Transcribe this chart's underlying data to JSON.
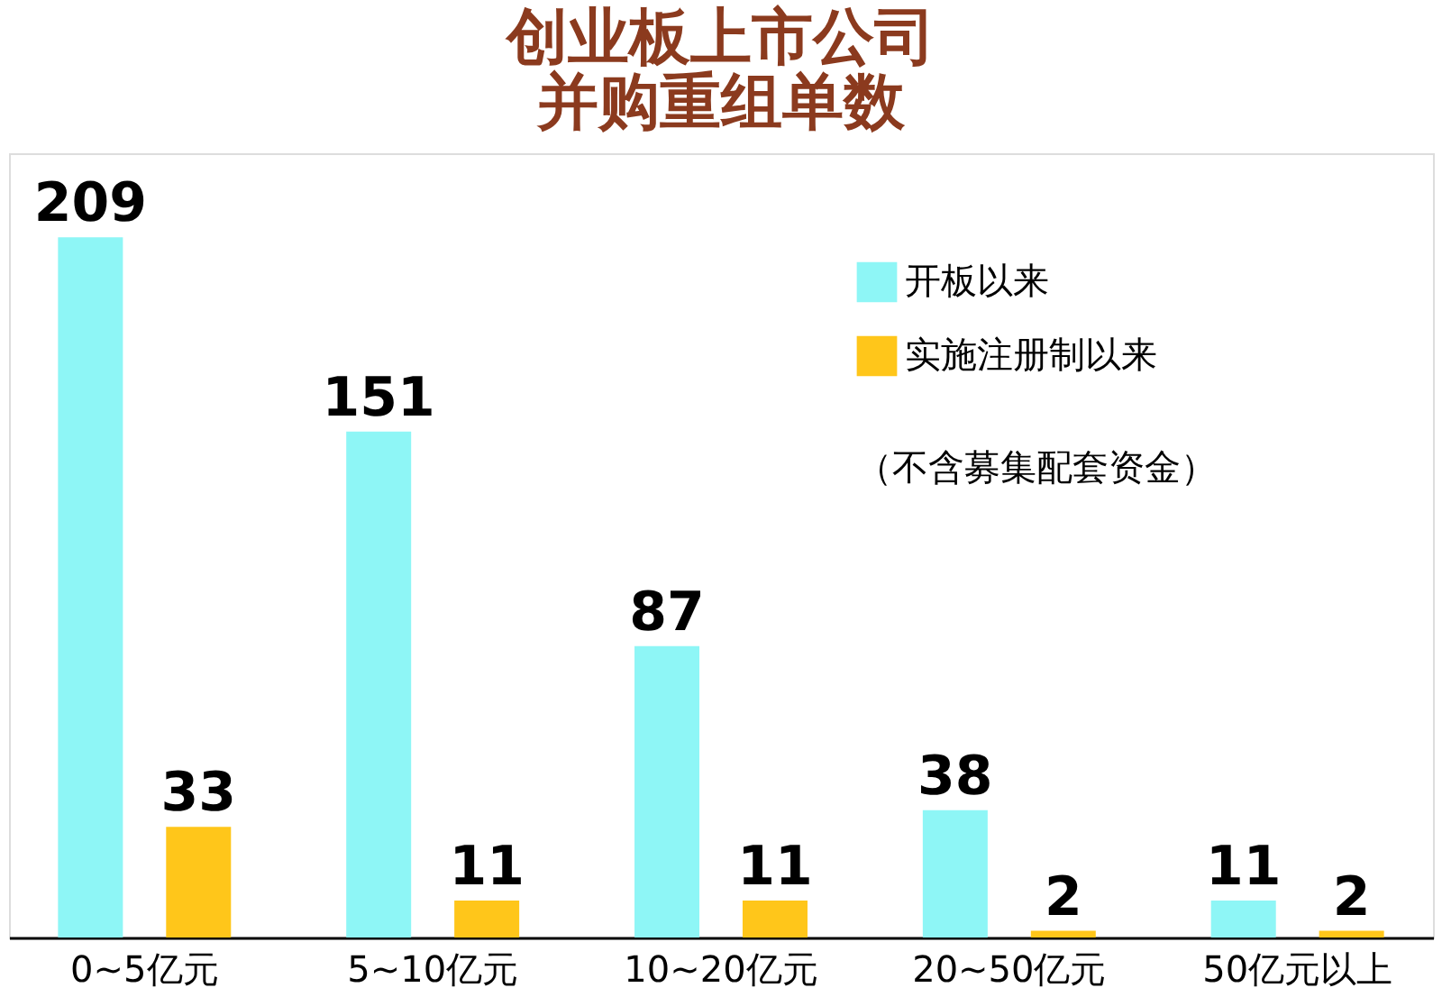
{
  "chart_data": {
    "type": "bar",
    "title": "创业板上市公司并购重组单数",
    "categories": [
      "0~5亿元",
      "5~10亿元",
      "10~20亿元",
      "20~50亿元",
      "50亿元以上"
    ],
    "series": [
      {
        "name": "开板以来",
        "color": "#8ef6f6",
        "values": [
          209,
          151,
          87,
          38,
          11
        ]
      },
      {
        "name": "实施注册制以来",
        "color": "#ffc61a",
        "values": [
          33,
          11,
          11,
          2,
          2
        ]
      }
    ],
    "annotations": [
      "（不含募集配套资金）"
    ],
    "data_labels": true,
    "legend": "top right",
    "grid": false
  }
}
